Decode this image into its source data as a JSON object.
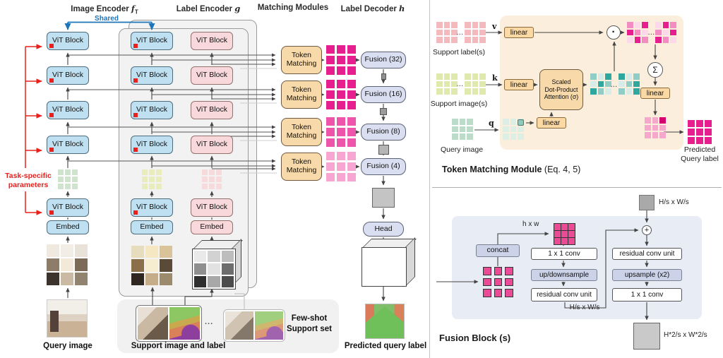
{
  "headers": {
    "image_encoder": {
      "label": "Image Encoder ",
      "symbol": "f",
      "subscript": "T"
    },
    "label_encoder": {
      "label": "Label Encoder ",
      "symbol": "g"
    },
    "matching_modules": {
      "label": "Matching Modules"
    },
    "label_decoder": {
      "label": "Label Decoder ",
      "symbol": "h"
    }
  },
  "left": {
    "shared": "Shared",
    "task_specific_line1": "Task-specific",
    "task_specific_line2": "parameters",
    "vit_block": "ViT Block",
    "embed": "Embed",
    "token_matching_line1": "Token",
    "token_matching_line2": "Matching",
    "fusions": [
      "Fusion (32)",
      "Fusion (16)",
      "Fusion (8)",
      "Fusion (4)"
    ],
    "head": "Head",
    "query_image_caption": "Query image",
    "support_caption": "Support image and label",
    "few_shot_line1": "Few-shot",
    "few_shot_line2": "Support set",
    "predicted_caption": "Predicted query label",
    "ellipsis": "..."
  },
  "tmm": {
    "title": "Token Matching Module",
    "title_suffix": " (Eq. 4, 5)",
    "support_labels": "Support label(s)",
    "support_images": "Support image(s)",
    "query_image": "Query image",
    "v": "v",
    "k": "k",
    "q": "q",
    "linear": "linear",
    "attention_line1": "Scaled",
    "attention_line2": "Dot-Product",
    "attention_line3": "Attention (σ)",
    "dot": "·",
    "sigma": "Σ",
    "predicted_line1": "Predicted",
    "predicted_line2": "Query label",
    "ellipsis": "..."
  },
  "fusion": {
    "title": "Fusion Block",
    "title_suffix": " (s)",
    "input_size": "H/s x W/s",
    "hxw": "h x w",
    "concat": "concat",
    "conv11": "1 x 1 conv",
    "updown": "up/downsample",
    "rcu": "residual conv unit",
    "upsample": "upsample (x2)",
    "mid_size": "H/s x W/s",
    "out_size": "H*2/s x W*2/s",
    "plus": "+"
  },
  "colors": {
    "accent_blue": "#1b75bb",
    "accent_red": "#e8211d",
    "magenta": "#e71e8e",
    "vit_blue_fill": "#bfe0f0",
    "vit_pink_fill": "#f8d8da",
    "module_orange_fill": "#f8d9a9",
    "fusion_fill": "#d9dff0",
    "panel_orange": "#fbeedd",
    "panel_blue": "#e8ecf5",
    "token_palettes": {
      "magenta": [
        "#e71e8e"
      ],
      "magenta_mid": [
        "#ee55aa"
      ],
      "magenta_light": [
        "#f7a6d2"
      ],
      "pink_soft": [
        "#f3b9bc"
      ],
      "yellow_green": [
        "#dfe8ad"
      ],
      "seafoam": [
        "#bcdcca"
      ],
      "seafoam_light": [
        "#ddeee4"
      ],
      "green_light": [
        "#cfe3cf"
      ],
      "yellow_light": [
        "#e9ecbc"
      ],
      "pink_light": [
        "#f6dadc"
      ],
      "teal_mix": [
        "#2fa79e",
        "#8fcdc6",
        "#d7ece9"
      ],
      "magenta_mix": [
        "#e71e8e",
        "#f48cc4",
        "#fbd8ea"
      ],
      "predict_mix": [
        "#f5a8cb",
        "#d6006f"
      ]
    }
  }
}
